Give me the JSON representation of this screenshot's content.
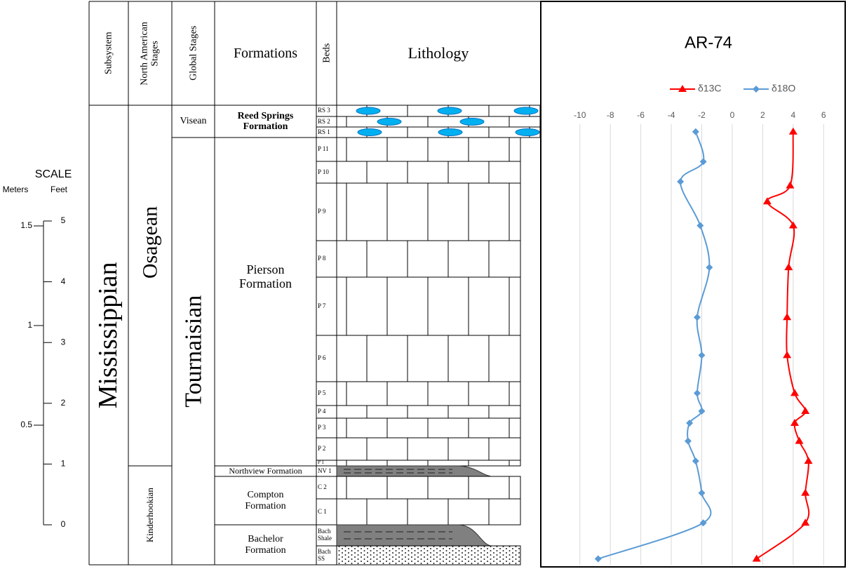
{
  "chart_data": {
    "type": "line",
    "title": "AR-74",
    "xlim": [
      -11,
      7
    ],
    "xticks": [
      -10,
      -8,
      -6,
      -4,
      -2,
      0,
      2,
      4,
      6
    ],
    "ylim": [
      -0.2,
      2.05
    ],
    "grid": true,
    "legend": "top",
    "series": [
      {
        "name": "δ13C",
        "color": "#ff0000",
        "marker": "triangle",
        "values": [
          4.0,
          3.8,
          2.3,
          4.0,
          3.7,
          3.6,
          3.6,
          4.1,
          4.8,
          4.1,
          4.4,
          5.0,
          4.8,
          4.8,
          1.6
        ],
        "heights": [
          1.97,
          1.7,
          1.62,
          1.5,
          1.29,
          1.04,
          0.85,
          0.66,
          0.57,
          0.51,
          0.42,
          0.32,
          0.16,
          0.01,
          -0.17
        ]
      },
      {
        "name": "δ18O",
        "color": "#5b9bd5",
        "marker": "diamond",
        "values": [
          -2.4,
          -1.9,
          -3.4,
          -2.1,
          -1.5,
          -2.3,
          -2.0,
          -2.3,
          -2.0,
          -2.8,
          -2.9,
          -2.4,
          -2.0,
          -1.9,
          -8.8
        ],
        "heights": [
          1.97,
          1.82,
          1.72,
          1.5,
          1.29,
          1.04,
          0.85,
          0.66,
          0.57,
          0.51,
          0.42,
          0.32,
          0.16,
          0.01,
          -0.17
        ]
      }
    ]
  },
  "scale": {
    "title": "SCALE",
    "units": [
      "Meters",
      "Feet"
    ],
    "meters": [
      0.5,
      1,
      1.5
    ],
    "feet": [
      0,
      1,
      2,
      3,
      4,
      5
    ]
  },
  "column": {
    "headers": [
      "Subsystem",
      "North American Stages",
      "Global Stages",
      "Formations",
      "Beds",
      "Lithology"
    ],
    "subsystem": "Mississippian",
    "stages": [
      "Osagean",
      "Kinderhookian"
    ],
    "global_stages": [
      "Visean",
      "Tournaisian"
    ],
    "formations": [
      "Reed Springs Formation",
      "Pierson Formation",
      "Northview Formation",
      "Compton Formation",
      "Bachelor Formation"
    ],
    "beds": [
      "RS 3",
      "RS 2",
      "RS 1",
      "P 11",
      "P 10",
      "P 9",
      "P 8",
      "P 7",
      "P 6",
      "P 5",
      "P 4",
      "P 3",
      "P 2",
      "P 1",
      "NV 1",
      "C 2",
      "C 1",
      "Bach Shale",
      "Bach SS"
    ]
  }
}
